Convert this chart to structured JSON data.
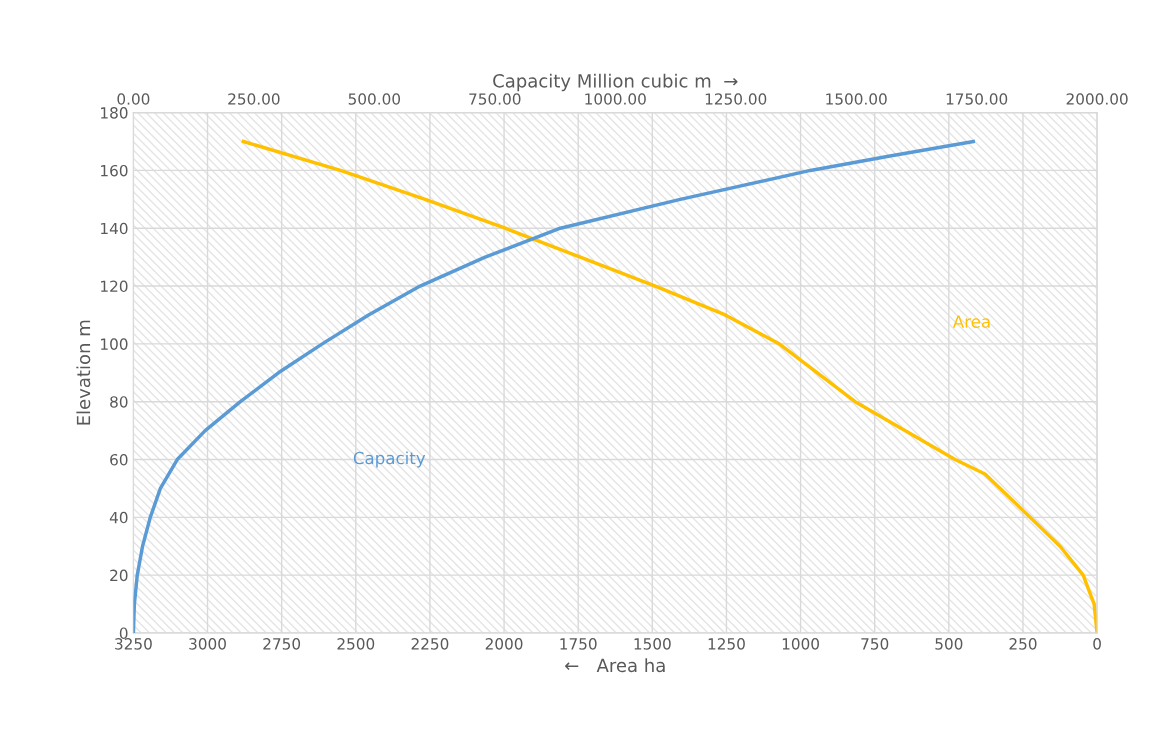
{
  "chart_data": {
    "type": "line",
    "xlabel": "←   Area ha",
    "x2label": "Capacity Million cubic m  →",
    "ylabel": "Elevation m",
    "xlim": [
      3250,
      0
    ],
    "xticks": [
      3250,
      3000,
      2750,
      2500,
      2250,
      2000,
      1750,
      1500,
      1250,
      1000,
      750,
      500,
      250,
      0
    ],
    "x2lim": [
      0,
      2000
    ],
    "x2ticks": [
      {
        "value": 0,
        "label": "0.00"
      },
      {
        "value": 250,
        "label": "250.00"
      },
      {
        "value": 500,
        "label": "500.00"
      },
      {
        "value": 750,
        "label": "750.00"
      },
      {
        "value": 1000,
        "label": "1000.00"
      },
      {
        "value": 1250,
        "label": "1250.00"
      },
      {
        "value": 1500,
        "label": "1500.00"
      },
      {
        "value": 1750,
        "label": "1750.00"
      },
      {
        "value": 2000,
        "label": "2000.00"
      }
    ],
    "ylim": [
      0,
      180
    ],
    "yticks": [
      0,
      20,
      40,
      60,
      80,
      100,
      120,
      140,
      160,
      180
    ],
    "grid": true,
    "marker": "none",
    "line_style": "solid",
    "series": [
      {
        "name": "Capacity",
        "color": "#5b9bd5",
        "axis": "x2",
        "x": [
          0,
          2,
          8,
          19,
          35,
          56,
          91,
          149,
          222,
          301,
          392,
          488,
          595,
          730,
          886,
          1135,
          1405,
          1570,
          1743
        ],
        "values": [
          0,
          10,
          20,
          30,
          40,
          50,
          60,
          70,
          80,
          90,
          100,
          110,
          120,
          130,
          140,
          150,
          160,
          165,
          170
        ]
      },
      {
        "name": "Area",
        "color": "#ffc000",
        "x": [
          0,
          10,
          47,
          125,
          226,
          378,
          479,
          816,
          1072,
          1254,
          1490,
          1743,
          1996,
          2266,
          2552,
          2879
        ],
        "values": [
          0,
          10,
          20,
          30,
          40,
          55,
          60,
          80,
          100,
          110,
          120,
          130,
          140,
          150,
          160,
          170
        ]
      }
    ]
  }
}
